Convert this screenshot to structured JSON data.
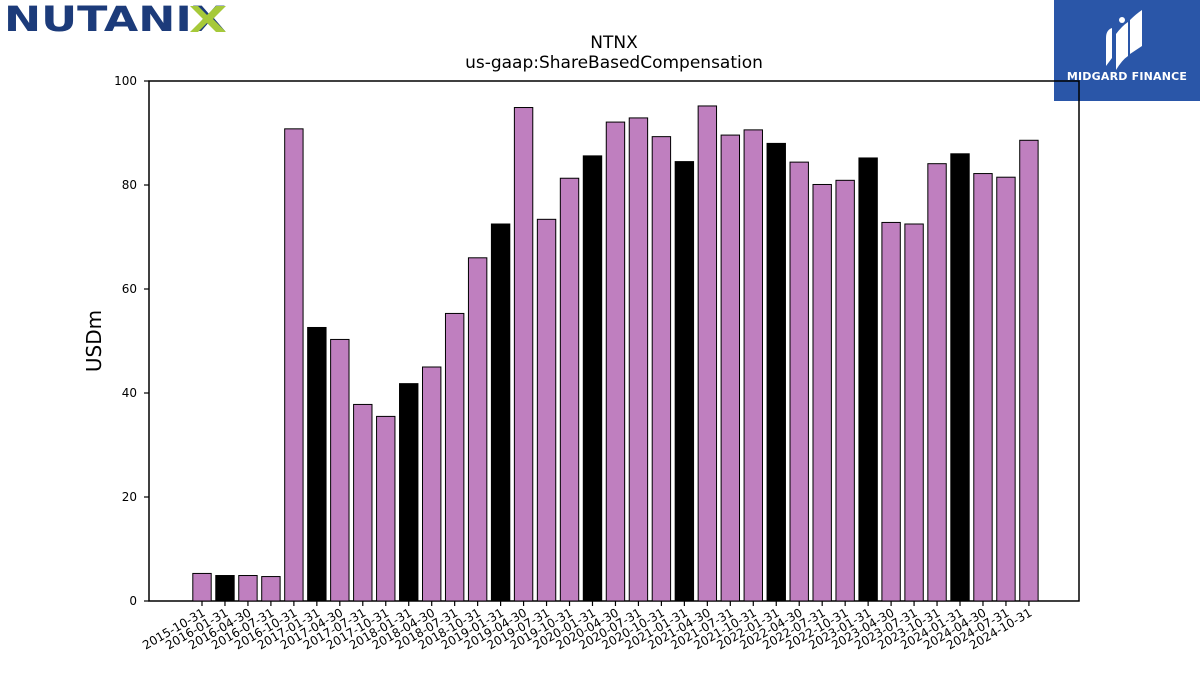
{
  "brand": {
    "logo_text": "NUTANIX",
    "logo_color": "#1c3b7a",
    "logo_accent_color": "#a6c93a"
  },
  "partner": {
    "name": "MIDGARD FINANCE",
    "bg_color": "#2a56a8",
    "icon": "midgard-mark-icon"
  },
  "chart_data": {
    "type": "bar",
    "title": "NTNX",
    "subtitle": "us-gaap:ShareBasedCompensation",
    "xlabel": "",
    "ylabel": "USDm",
    "ylim": [
      0,
      100
    ],
    "yticks": [
      0,
      20,
      40,
      60,
      80,
      100
    ],
    "grid": false,
    "colors": {
      "fill": "#bf7fbf",
      "fill_highlight": "#000000",
      "edge": "#000000"
    },
    "categories": [
      "2015-10-31",
      "2016-01-31",
      "2016-04-30",
      "2016-07-31",
      "2016-10-31",
      "2017-01-31",
      "2017-04-30",
      "2017-07-31",
      "2017-10-31",
      "2018-01-31",
      "2018-04-30",
      "2018-07-31",
      "2018-10-31",
      "2019-01-31",
      "2019-04-30",
      "2019-07-31",
      "2019-10-31",
      "2020-01-31",
      "2020-04-30",
      "2020-07-31",
      "2020-10-31",
      "2021-01-31",
      "2021-04-30",
      "2021-07-31",
      "2021-10-31",
      "2022-01-31",
      "2022-04-30",
      "2022-07-31",
      "2022-10-31",
      "2023-01-31",
      "2023-04-30",
      "2023-07-31",
      "2023-10-31",
      "2024-01-31",
      "2024-04-30",
      "2024-07-31",
      "2024-10-31"
    ],
    "values": [
      5.3,
      4.9,
      4.9,
      4.7,
      90.8,
      52.6,
      50.3,
      37.8,
      35.5,
      41.8,
      45.0,
      55.3,
      66.0,
      72.5,
      94.9,
      73.4,
      81.3,
      85.6,
      92.1,
      92.9,
      89.3,
      84.5,
      95.2,
      89.6,
      90.6,
      88.0,
      84.4,
      80.1,
      80.9,
      85.2,
      72.8,
      72.5,
      84.1,
      86.0,
      82.2,
      81.5,
      88.6
    ],
    "highlighted": [
      false,
      true,
      false,
      false,
      false,
      true,
      false,
      false,
      false,
      true,
      false,
      false,
      false,
      true,
      false,
      false,
      false,
      true,
      false,
      false,
      false,
      true,
      false,
      false,
      false,
      true,
      false,
      false,
      false,
      true,
      false,
      false,
      false,
      true,
      false,
      false,
      false
    ]
  }
}
